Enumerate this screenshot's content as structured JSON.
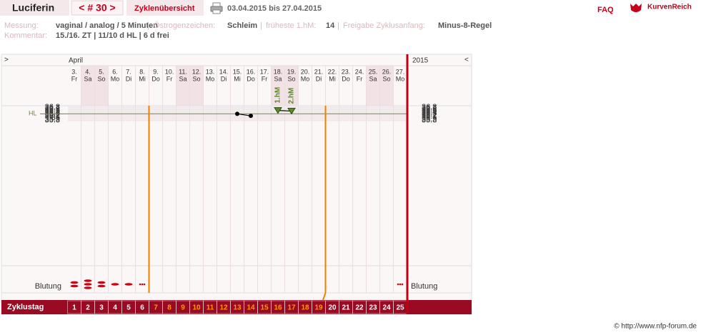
{
  "header": {
    "user": "Luciferin",
    "cycle_nav": "< # 30 >",
    "overview": "Zyklenübersicht",
    "date_range": "03.04.2015 bis 27.04.2015",
    "faq": "FAQ",
    "logo": "KurvenReich"
  },
  "info": {
    "measurement_label": "Messung:",
    "measurement": "vaginal / analog / 5 Minuten",
    "separator": "|",
    "estrogen_label": "Östrogenzeichen:",
    "estrogen": "Schleim",
    "earliest_label": "früheste 1.hM:",
    "earliest": "14",
    "release_label": "Freigabe Zyklusanfang:",
    "release": "Minus-8-Regel",
    "comment_label": "Kommentar:",
    "comment": "15./16. ZT | 11/10 d HL | 6 d frei"
  },
  "chart_data": {
    "type": "line",
    "nav_next": ">",
    "month": "April",
    "year": "2015",
    "nav_prev": "<",
    "categories": [
      "3.",
      "4.",
      "5.",
      "6.",
      "7.",
      "8.",
      "9.",
      "10.",
      "11.",
      "12.",
      "13.",
      "14.",
      "15.",
      "16.",
      "17.",
      "18.",
      "19.",
      "20.",
      "21.",
      "22.",
      "23.",
      "24.",
      "25.",
      "26.",
      "27."
    ],
    "weekdays": [
      "Fr",
      "Sa",
      "So",
      "Mo",
      "Di",
      "Mi",
      "Do",
      "Fr",
      "Sa",
      "So",
      "Mo",
      "Di",
      "Mi",
      "Do",
      "Fr",
      "Sa",
      "So",
      "Mo",
      "Di",
      "Mi",
      "Do",
      "Fr",
      "Sa",
      "So",
      "Mo"
    ],
    "values": [
      null,
      null,
      null,
      null,
      null,
      null,
      null,
      null,
      null,
      null,
      null,
      null,
      36.3,
      36.15,
      null,
      36.55,
      36.5,
      null,
      null,
      null,
      null,
      null,
      null,
      null,
      null
    ],
    "point_labels": [
      null,
      null,
      null,
      null,
      null,
      null,
      null,
      null,
      null,
      null,
      null,
      null,
      null,
      null,
      null,
      "1.hM",
      "2.hM",
      null,
      null,
      null,
      null,
      null,
      null,
      null,
      null
    ],
    "color": "#000000",
    "marker_label_color": "#5a8a2a",
    "ylim": [
      35.7,
      36.9
    ],
    "yticks": [
      35.8,
      35.9,
      36,
      36.1,
      36.2,
      36.3,
      36.4,
      36.5,
      36.6,
      36.7,
      36.8
    ],
    "grid": true,
    "hl": {
      "label": "HL",
      "value": 36.3,
      "color": "#6b8e23"
    },
    "bleeding_label": "Blutung",
    "bleeding": [
      3,
      4,
      3,
      2,
      2,
      1,
      null,
      null,
      null,
      null,
      null,
      null,
      null,
      null,
      null,
      null,
      null,
      null,
      null,
      null,
      null,
      null,
      null,
      null,
      1
    ],
    "bleeding_color": "#d00010",
    "cycle_label": "Zyklustag",
    "cycle_days": [
      1,
      2,
      3,
      4,
      5,
      6,
      7,
      8,
      9,
      10,
      11,
      12,
      13,
      14,
      15,
      16,
      17,
      18,
      19,
      20,
      21,
      22,
      23,
      24,
      25
    ],
    "cycle_day_colors": [
      "#ffffff",
      "#ffffff",
      "#ffffff",
      "#ffffff",
      "#ffffff",
      "#ffffff",
      "#ff9a00",
      "#ff9a00",
      "#ff9a00",
      "#ff9a00",
      "#ff9a00",
      "#ff9a00",
      "#ff9a00",
      "#ff9a00",
      "#ff9a00",
      "#ff9a00",
      "#ff9a00",
      "#ff9a00",
      "#ff9a00",
      "#ffffff",
      "#ffffff",
      "#ffffff",
      "#ffffff",
      "#ffffff",
      "#ffffff"
    ]
  },
  "footer": "© http://www.nfp-forum.de"
}
